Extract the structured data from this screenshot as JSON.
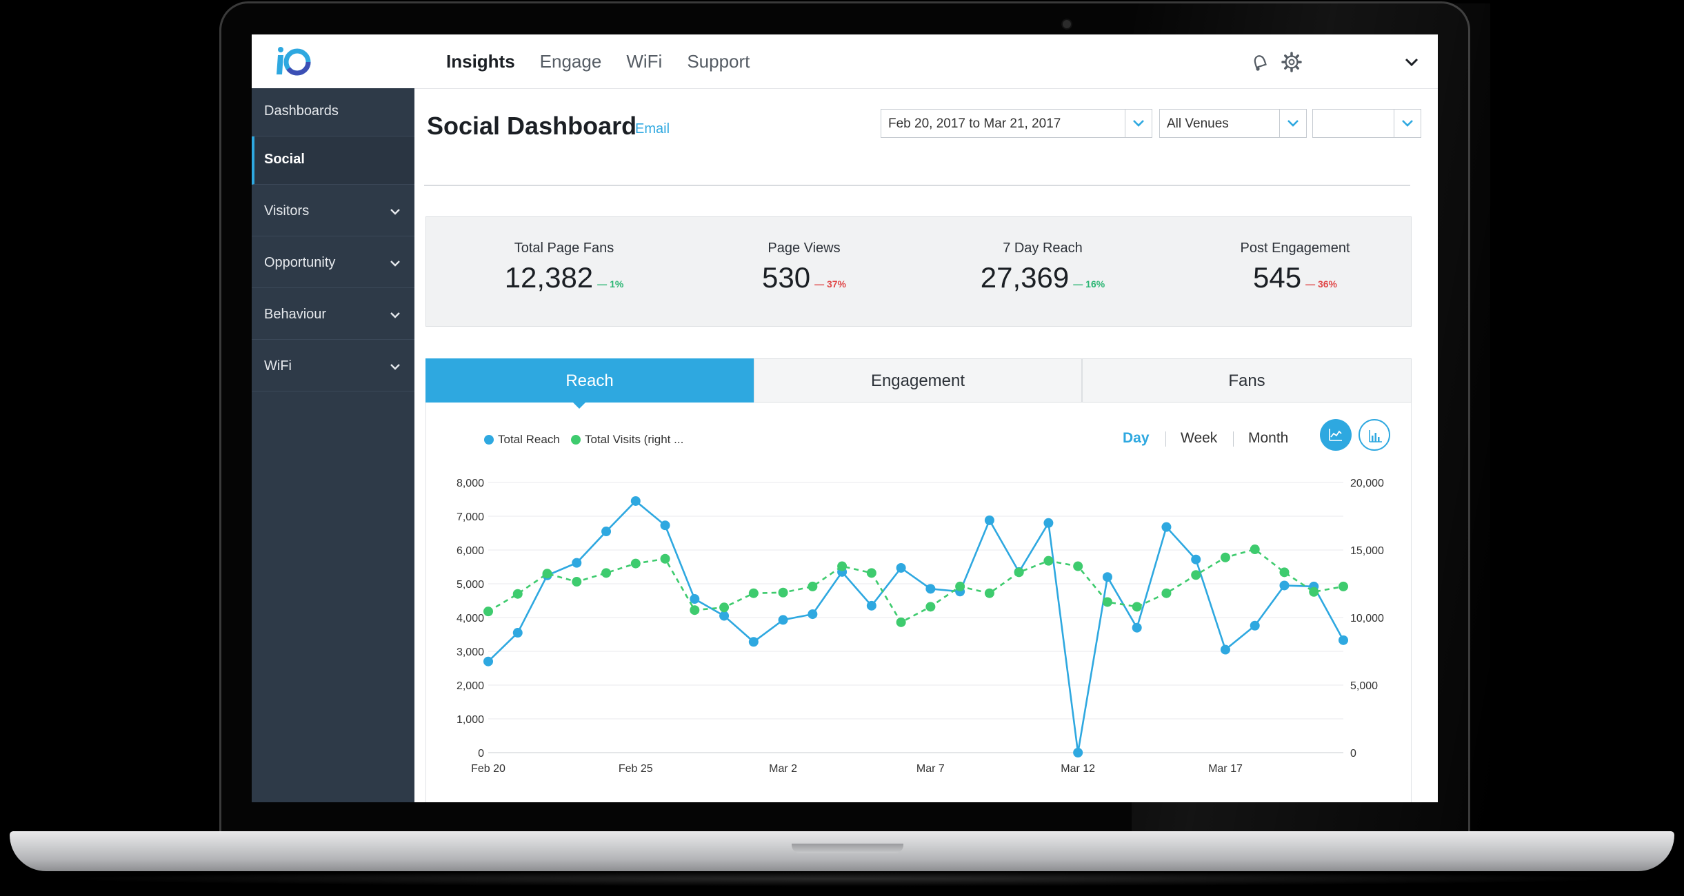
{
  "app": {
    "nav": [
      "Insights",
      "Engage",
      "WiFi",
      "Support"
    ],
    "active_nav": "Insights",
    "icons": [
      "notification-bell-icon",
      "settings-gear-icon",
      "chevron-down-icon"
    ]
  },
  "sidebar": {
    "items": [
      {
        "label": "Dashboards",
        "expandable": false
      },
      {
        "label": "Social",
        "expandable": false,
        "active": true
      },
      {
        "label": "Visitors",
        "expandable": true
      },
      {
        "label": "Opportunity",
        "expandable": true
      },
      {
        "label": "Behaviour",
        "expandable": true
      },
      {
        "label": "WiFi",
        "expandable": true
      }
    ]
  },
  "header": {
    "title": "Social Dashboard",
    "email_link": "Email",
    "date_range": "Feb 20, 2017 to Mar 21, 2017",
    "venue": "All Venues",
    "third_filter": ""
  },
  "kpis": [
    {
      "label": "Total Page Fans",
      "value": "12,382",
      "change": "1%",
      "direction": "up"
    },
    {
      "label": "Page Views",
      "value": "530",
      "change": "37%",
      "direction": "down"
    },
    {
      "label": "7 Day Reach",
      "value": "27,369",
      "change": "16%",
      "direction": "up"
    },
    {
      "label": "Post Engagement",
      "value": "545",
      "change": "36%",
      "direction": "down"
    }
  ],
  "tabs": [
    "Reach",
    "Engagement",
    "Fans"
  ],
  "active_tab": "Reach",
  "periods": [
    "Day",
    "Week",
    "Month"
  ],
  "active_period": "Day",
  "view_icons": [
    "line-chart-icon",
    "bar-chart-icon"
  ],
  "colors": {
    "accent": "#2ea8e0",
    "total_reach": "#2ea8e0",
    "total_visits": "#3ecb6e",
    "sidebar_bg": "#2e3a48",
    "up": "#2bb673",
    "down": "#e04848"
  },
  "chart_data": {
    "type": "line",
    "x_tick_labels": [
      "Feb 20",
      "Feb 25",
      "Mar 2",
      "Mar 7",
      "Mar 12",
      "Mar 17"
    ],
    "y_left_ticks": [
      "0",
      "1,000",
      "2,000",
      "3,000",
      "4,000",
      "5,000",
      "6,000",
      "7,000",
      "8,000"
    ],
    "y_right_ticks": [
      "0",
      "5,000",
      "10,000",
      "15,000",
      "20,000"
    ],
    "ylim_left": [
      0,
      8000
    ],
    "ylim_right": [
      0,
      20000
    ],
    "grid": true,
    "legend_position": "top-left",
    "x": [
      "Feb 20",
      "Feb 21",
      "Feb 22",
      "Feb 23",
      "Feb 24",
      "Feb 25",
      "Feb 26",
      "Feb 27",
      "Feb 28",
      "Mar 1",
      "Mar 2",
      "Mar 3",
      "Mar 4",
      "Mar 5",
      "Mar 6",
      "Mar 7",
      "Mar 8",
      "Mar 9",
      "Mar 10",
      "Mar 11",
      "Mar 12",
      "Mar 13",
      "Mar 14",
      "Mar 15",
      "Mar 16",
      "Mar 17",
      "Mar 18",
      "Mar 19",
      "Mar 20",
      "Mar 21"
    ],
    "series": [
      {
        "name": "Total Reach",
        "axis": "left",
        "style": "solid",
        "values": [
          2700,
          3550,
          5250,
          5620,
          6550,
          7450,
          6730,
          4550,
          4050,
          3280,
          3930,
          4100,
          5350,
          4350,
          5470,
          4850,
          4770,
          6880,
          5350,
          6800,
          0,
          5200,
          3700,
          6680,
          5720,
          3050,
          3760,
          4950,
          4920,
          3330
        ]
      },
      {
        "name": "Total Visits (right ...",
        "axis": "right",
        "style": "dashed",
        "values": [
          10450,
          11750,
          13250,
          12650,
          13300,
          14000,
          14350,
          10550,
          10750,
          11800,
          11850,
          12300,
          13800,
          13300,
          9650,
          10800,
          12300,
          11800,
          13350,
          14200,
          13800,
          11150,
          10800,
          11800,
          13150,
          14450,
          15050,
          13350,
          11900,
          12300
        ]
      }
    ]
  }
}
